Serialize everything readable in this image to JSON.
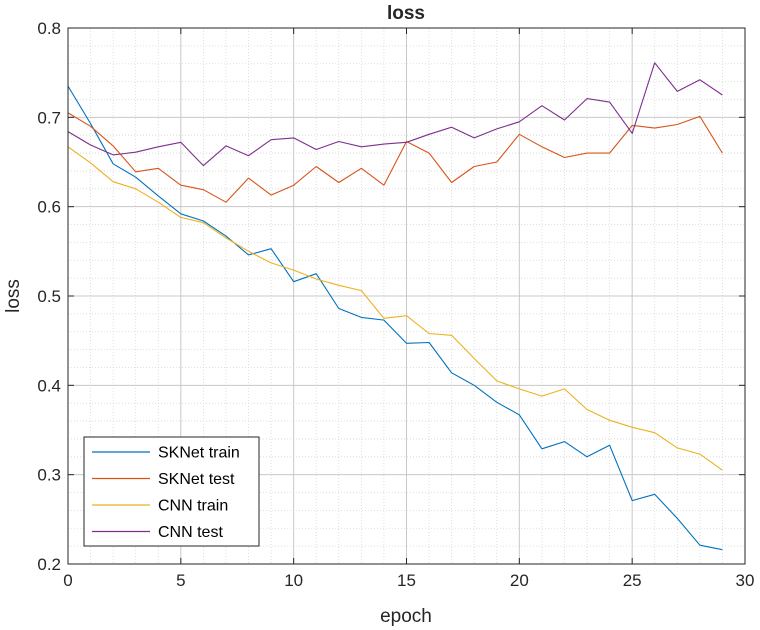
{
  "chart_data": {
    "type": "line",
    "title": "loss",
    "xlabel": "epoch",
    "ylabel": "loss",
    "xlim": [
      0,
      30
    ],
    "ylim": [
      0.2,
      0.8
    ],
    "xticks": [
      "0",
      "5",
      "10",
      "15",
      "20",
      "25",
      "30"
    ],
    "yticks": [
      "0.2",
      "0.3",
      "0.4",
      "0.5",
      "0.6",
      "0.7",
      "0.8"
    ],
    "grid": "major-and-minor",
    "legend_position": "bottom-left",
    "x": [
      0,
      1,
      2,
      3,
      4,
      5,
      6,
      7,
      8,
      9,
      10,
      11,
      12,
      13,
      14,
      15,
      16,
      17,
      18,
      19,
      20,
      21,
      22,
      23,
      24,
      25,
      26,
      27,
      28,
      29
    ],
    "series": [
      {
        "name": "SKNet train",
        "color": "#0072BD",
        "values": [
          0.735,
          0.693,
          0.648,
          0.633,
          0.612,
          0.592,
          0.584,
          0.567,
          0.546,
          0.553,
          0.516,
          0.525,
          0.486,
          0.476,
          0.473,
          0.447,
          0.448,
          0.414,
          0.4,
          0.381,
          0.367,
          0.329,
          0.337,
          0.32,
          0.333,
          0.271,
          0.278,
          0.251,
          0.221,
          0.216
        ]
      },
      {
        "name": "SKNet test",
        "color": "#D95319",
        "values": [
          0.705,
          0.69,
          0.668,
          0.639,
          0.643,
          0.624,
          0.619,
          0.605,
          0.632,
          0.613,
          0.624,
          0.645,
          0.627,
          0.643,
          0.624,
          0.673,
          0.66,
          0.627,
          0.645,
          0.65,
          0.681,
          0.667,
          0.655,
          0.66,
          0.66,
          0.691,
          0.688,
          0.692,
          0.701,
          0.66
        ]
      },
      {
        "name": "CNN train",
        "color": "#EDB120",
        "values": [
          0.667,
          0.649,
          0.628,
          0.62,
          0.605,
          0.588,
          0.582,
          0.565,
          0.55,
          0.537,
          0.529,
          0.519,
          0.512,
          0.506,
          0.475,
          0.478,
          0.458,
          0.456,
          0.43,
          0.405,
          0.396,
          0.388,
          0.396,
          0.373,
          0.361,
          0.353,
          0.347,
          0.33,
          0.323,
          0.305
        ]
      },
      {
        "name": "CNN test",
        "color": "#7E2F8E",
        "values": [
          0.684,
          0.669,
          0.658,
          0.661,
          0.667,
          0.672,
          0.646,
          0.668,
          0.657,
          0.675,
          0.677,
          0.664,
          0.673,
          0.667,
          0.67,
          0.672,
          0.681,
          0.689,
          0.677,
          0.687,
          0.695,
          0.713,
          0.697,
          0.721,
          0.717,
          0.682,
          0.761,
          0.729,
          0.742,
          0.725
        ]
      }
    ]
  }
}
